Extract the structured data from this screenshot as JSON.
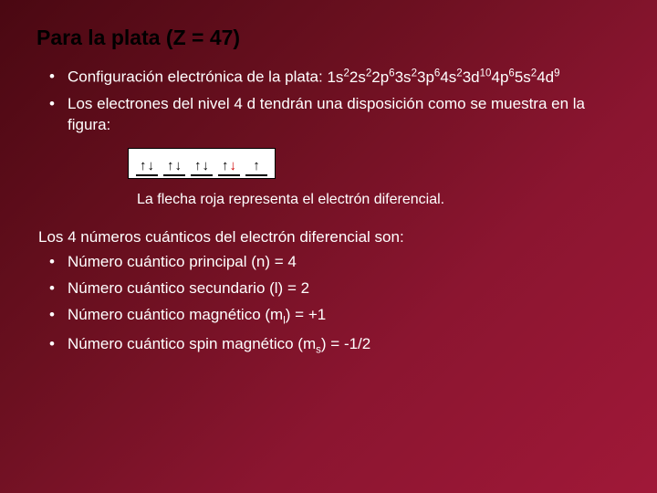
{
  "title": "Para la plata (Z = 47)",
  "intro": {
    "config_label": "Configuración electrónica de la plata:",
    "config_parts": [
      {
        "base": "1s",
        "sup": "2"
      },
      {
        "base": "2s",
        "sup": "2"
      },
      {
        "base": "2p",
        "sup": "6"
      },
      {
        "base": "3s",
        "sup": "2"
      },
      {
        "base": "3p",
        "sup": "6"
      },
      {
        "base": "4s",
        "sup": "2"
      },
      {
        "base": "3d",
        "sup": "10"
      },
      {
        "base": "4p",
        "sup": "6"
      },
      {
        "base": "5s",
        "sup": "2"
      },
      {
        "base": "4d",
        "sup": "9"
      }
    ],
    "arrangement_text": "Los electrones del nivel 4 d tendrán una disposición como se muestra en la figura:"
  },
  "orbital_diagram": {
    "boxes": [
      {
        "arrows": [
          "up",
          "down"
        ]
      },
      {
        "arrows": [
          "up",
          "down"
        ]
      },
      {
        "arrows": [
          "up",
          "down"
        ]
      },
      {
        "arrows": [
          "up",
          "down-red"
        ]
      },
      {
        "arrows": [
          "up"
        ]
      }
    ],
    "background": "#ffffff",
    "arrow_color": "#000000",
    "red_arrow_color": "#d00000"
  },
  "caption": "La flecha roja representa el electrón diferencial.",
  "quantum": {
    "heading": "Los 4 números cuánticos del electrón diferencial son:",
    "items": [
      {
        "label": "Número cuántico principal (n) = 4"
      },
      {
        "label": "Número cuántico secundario (l) = 2"
      },
      {
        "label_prefix": "Número cuántico magnético (m",
        "sub": "l",
        "label_suffix": ") = +1"
      },
      {
        "label_prefix": "Número cuántico spin magnético (m",
        "sub": "s",
        "label_suffix": ") = -1/2"
      }
    ]
  }
}
